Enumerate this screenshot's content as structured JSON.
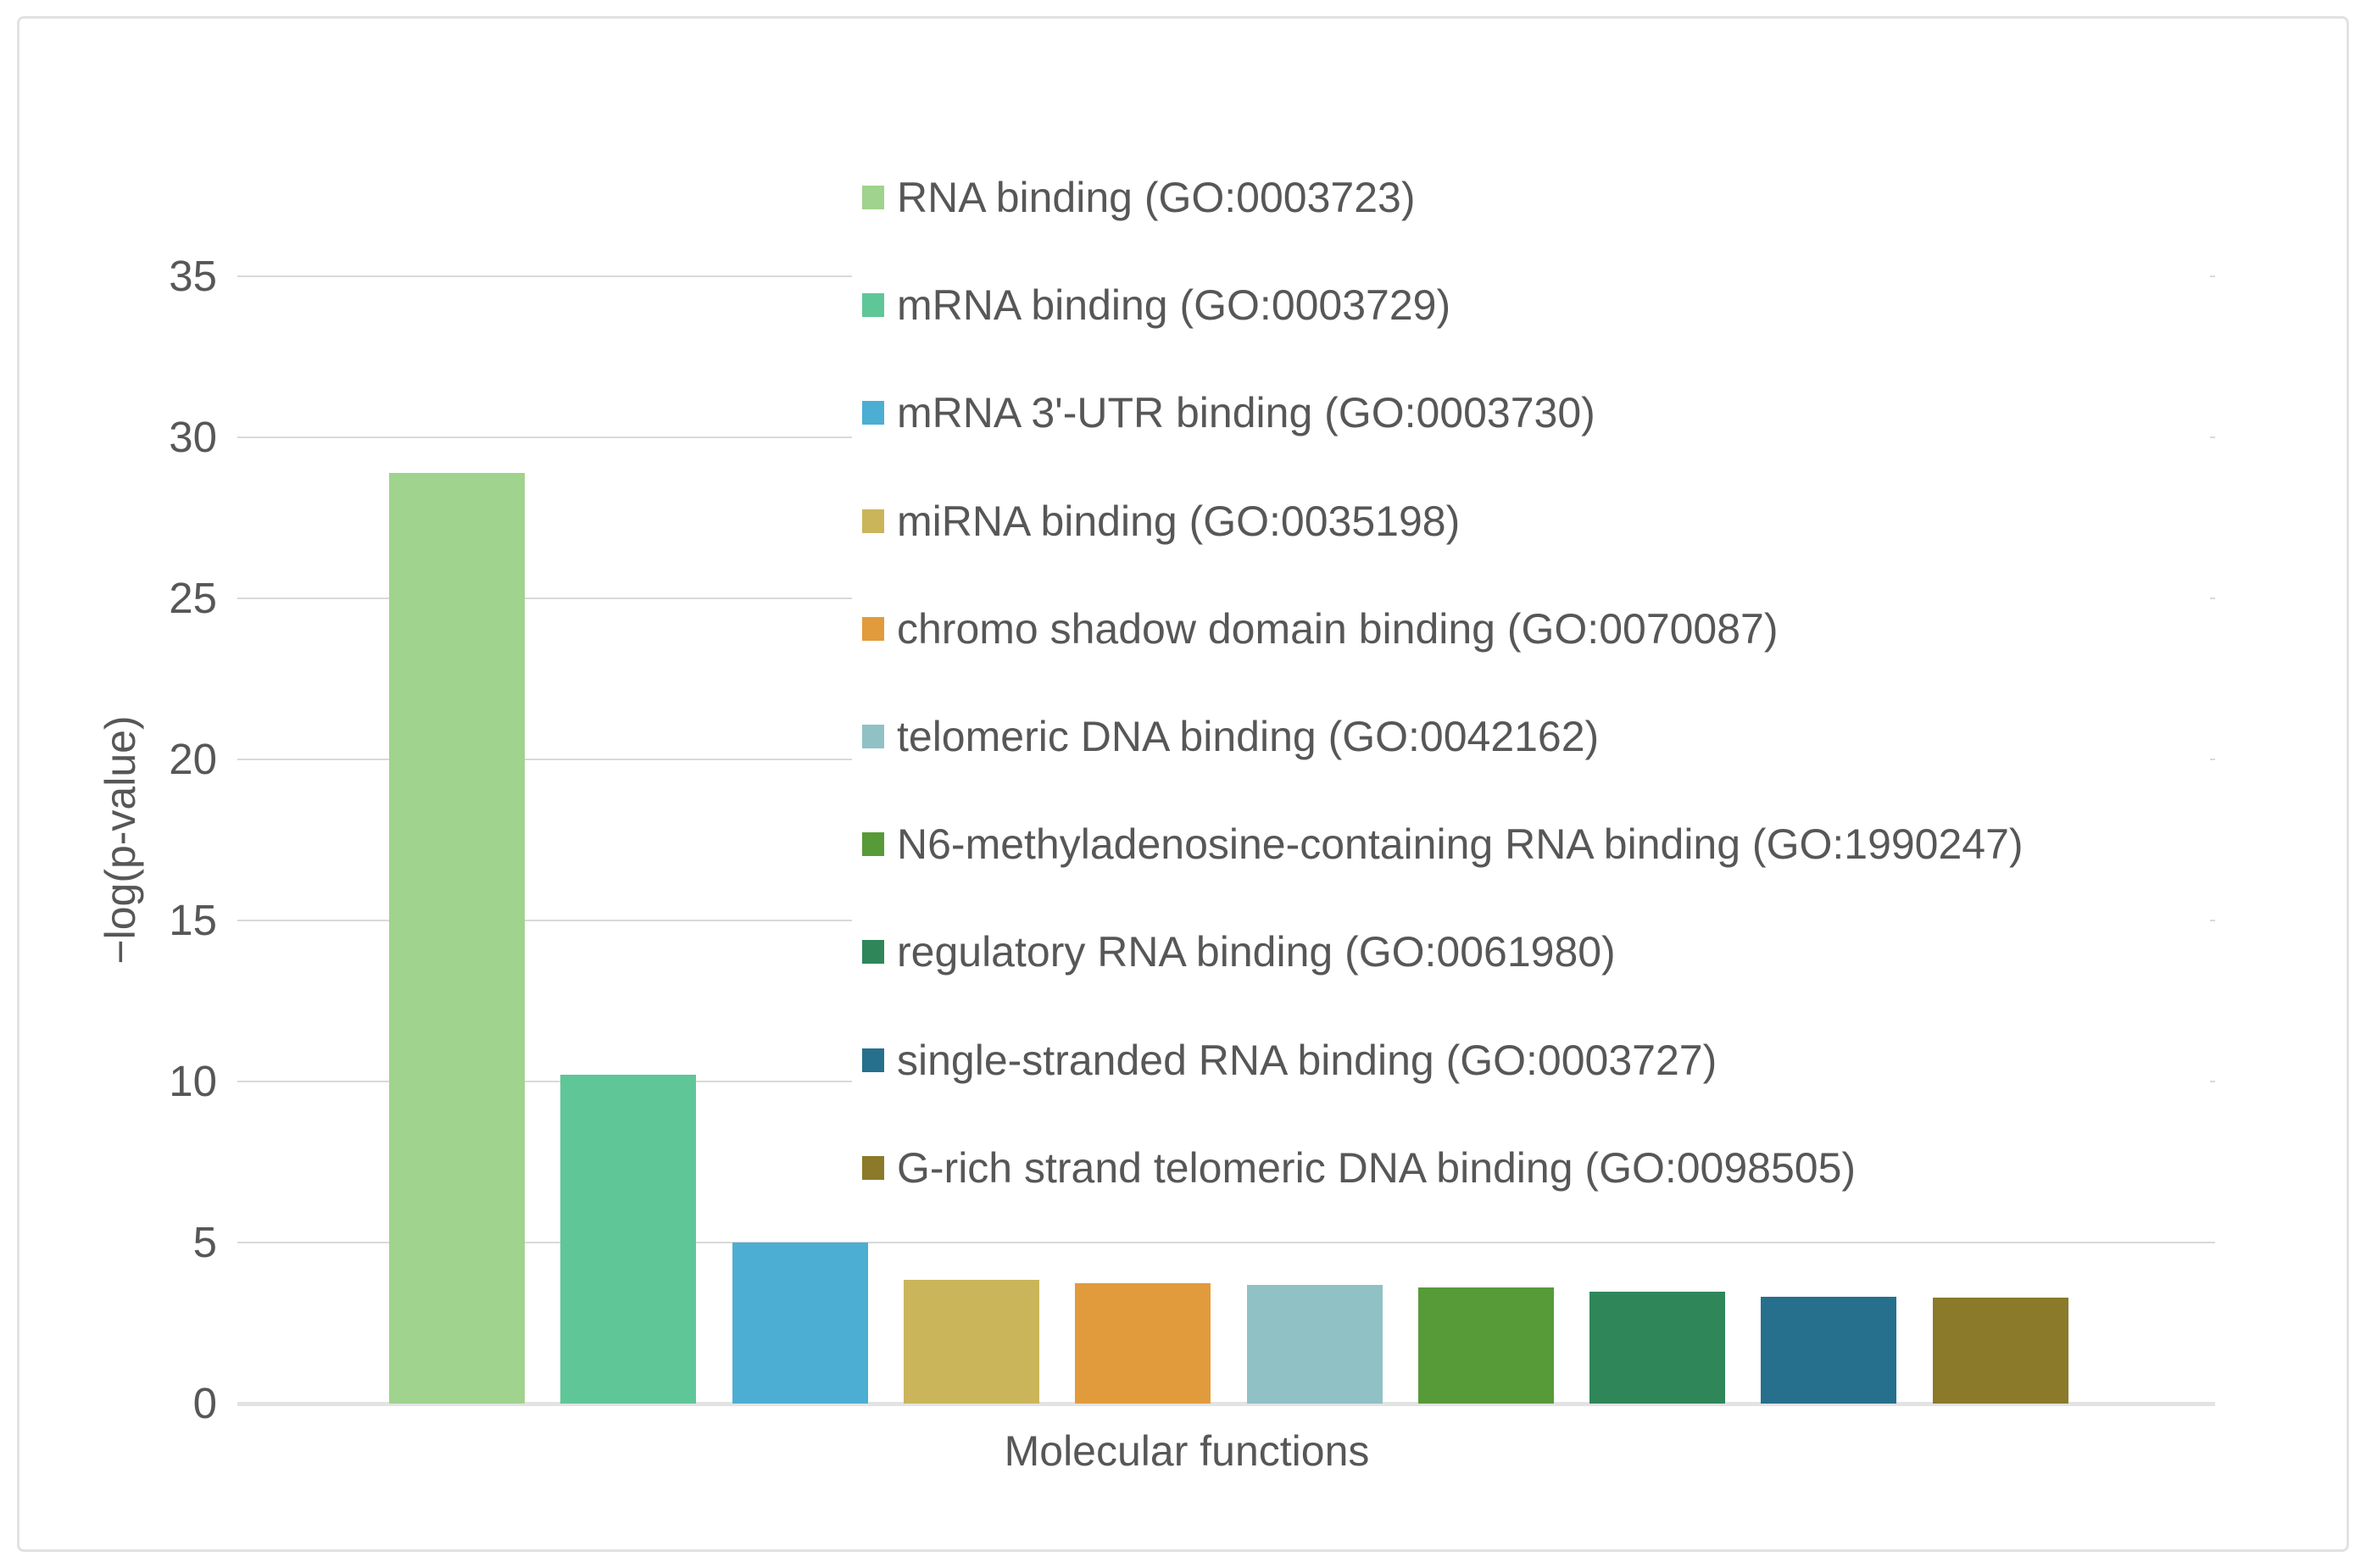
{
  "figure": {
    "background": "#ffffff",
    "border_color": "#e2e2e2"
  },
  "chart_data": {
    "type": "bar",
    "title": "",
    "xlabel": "Molecular functions",
    "ylabel": "−log(p-value)",
    "ylim": [
      0,
      35
    ],
    "yticks": [
      35,
      30,
      25,
      20,
      15,
      10,
      5,
      0
    ],
    "grid": true,
    "legend_position": "upper right",
    "categories": [
      "RNA binding (GO:0003723)",
      "mRNA binding (GO:0003729)",
      "mRNA 3'-UTR binding (GO:0003730)",
      "miRNA binding (GO:0035198)",
      "chromo shadow domain binding (GO:0070087)",
      "telomeric DNA binding (GO:0042162)",
      "N6-methyladenosine-containing RNA binding (GO:1990247)",
      "regulatory RNA binding (GO:0061980)",
      "single-stranded RNA binding (GO:0003727)",
      "G-rich strand telomeric DNA binding (GO:0098505)"
    ],
    "values": [
      28.9,
      10.2,
      5.0,
      3.85,
      3.74,
      3.68,
      3.6,
      3.47,
      3.32,
      3.29
    ],
    "colors": [
      "#A0D38D",
      "#5FC698",
      "#4CAED3",
      "#CAB55B",
      "#E19B3C",
      "#8FC1C5",
      "#579A38",
      "#2F8659",
      "#26708D",
      "#8A7A29"
    ],
    "text_color": "#575757",
    "gridline_color": "#D9D9D9",
    "baseline_color": "#E3E3E3"
  }
}
